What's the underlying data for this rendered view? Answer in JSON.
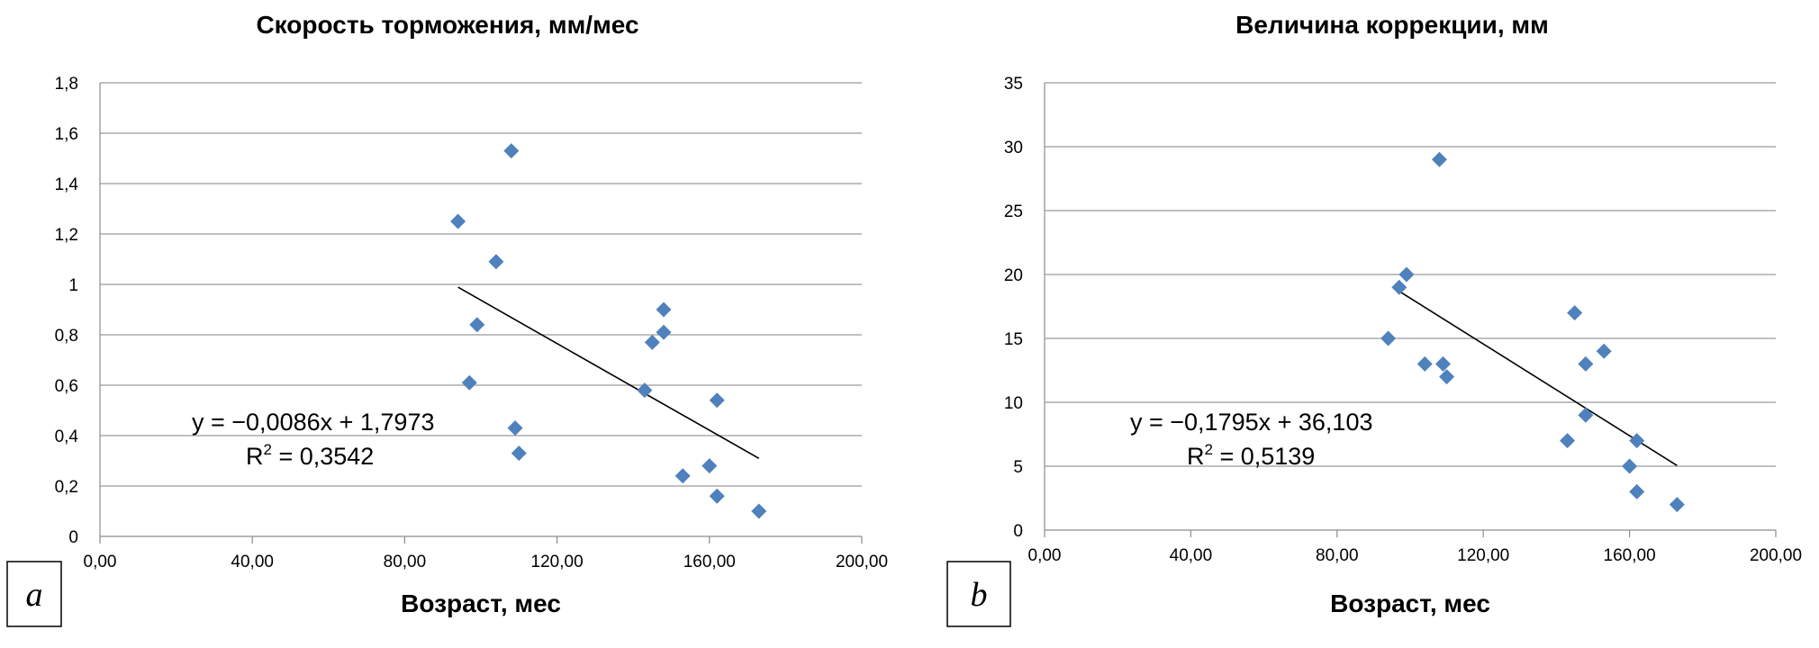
{
  "chart_data": [
    {
      "type": "scatter",
      "panel_label": "a",
      "title": "Скорость торможения, мм/мес",
      "xlabel": "Возраст, мес",
      "ylabel": "",
      "xlim": [
        0,
        200
      ],
      "ylim": [
        0,
        1.8
      ],
      "xticks": [
        "0,00",
        "40,00",
        "80,00",
        "120,00",
        "160,00",
        "200,00"
      ],
      "yticks": [
        "0",
        "0,2",
        "0,4",
        "0,6",
        "0,8",
        "1",
        "1,2",
        "1,4",
        "1,6",
        "1,8"
      ],
      "grid": true,
      "marker_color": "#4F81BD",
      "trendline_color": "#000000",
      "points": [
        {
          "x": 94,
          "y": 1.25
        },
        {
          "x": 99,
          "y": 0.84
        },
        {
          "x": 97,
          "y": 0.61
        },
        {
          "x": 104,
          "y": 1.09
        },
        {
          "x": 108,
          "y": 1.53
        },
        {
          "x": 109,
          "y": 0.43
        },
        {
          "x": 110,
          "y": 0.33
        },
        {
          "x": 143,
          "y": 0.58
        },
        {
          "x": 145,
          "y": 0.77
        },
        {
          "x": 148,
          "y": 0.9
        },
        {
          "x": 148,
          "y": 0.81
        },
        {
          "x": 153,
          "y": 0.24
        },
        {
          "x": 160,
          "y": 0.28
        },
        {
          "x": 162,
          "y": 0.54
        },
        {
          "x": 162,
          "y": 0.16
        },
        {
          "x": 173,
          "y": 0.1
        }
      ],
      "trendline": {
        "slope": -0.0086,
        "intercept": 1.7973,
        "x_from": 94,
        "x_to": 173
      },
      "equation": "y = −0,0086x + 1,7973",
      "r2_prefix": "R",
      "r2_exp": "2",
      "r2_value": " = 0,3542"
    },
    {
      "type": "scatter",
      "panel_label": "b",
      "title": "Величина коррекции, мм",
      "xlabel": "Возраст, мес",
      "ylabel": "",
      "xlim": [
        0,
        200
      ],
      "ylim": [
        0,
        35
      ],
      "xticks": [
        "0,00",
        "40,00",
        "80,00",
        "120,00",
        "160,00",
        "200,00"
      ],
      "yticks": [
        "0",
        "5",
        "10",
        "15",
        "20",
        "25",
        "30",
        "35"
      ],
      "grid": true,
      "marker_color": "#4F81BD",
      "trendline_color": "#000000",
      "points": [
        {
          "x": 94,
          "y": 15
        },
        {
          "x": 97,
          "y": 19
        },
        {
          "x": 99,
          "y": 20
        },
        {
          "x": 104,
          "y": 13
        },
        {
          "x": 108,
          "y": 29
        },
        {
          "x": 109,
          "y": 13
        },
        {
          "x": 110,
          "y": 12
        },
        {
          "x": 143,
          "y": 7
        },
        {
          "x": 145,
          "y": 17
        },
        {
          "x": 148,
          "y": 13
        },
        {
          "x": 148,
          "y": 9
        },
        {
          "x": 153,
          "y": 14
        },
        {
          "x": 160,
          "y": 5
        },
        {
          "x": 162,
          "y": 7
        },
        {
          "x": 162,
          "y": 3
        },
        {
          "x": 173,
          "y": 2
        }
      ],
      "trendline": {
        "slope": -0.1795,
        "intercept": 36.103,
        "x_from": 96,
        "x_to": 173
      },
      "equation": "y = −0,1795x + 36,103",
      "r2_prefix": "R",
      "r2_exp": "2",
      "r2_value": " = 0,5139"
    }
  ]
}
